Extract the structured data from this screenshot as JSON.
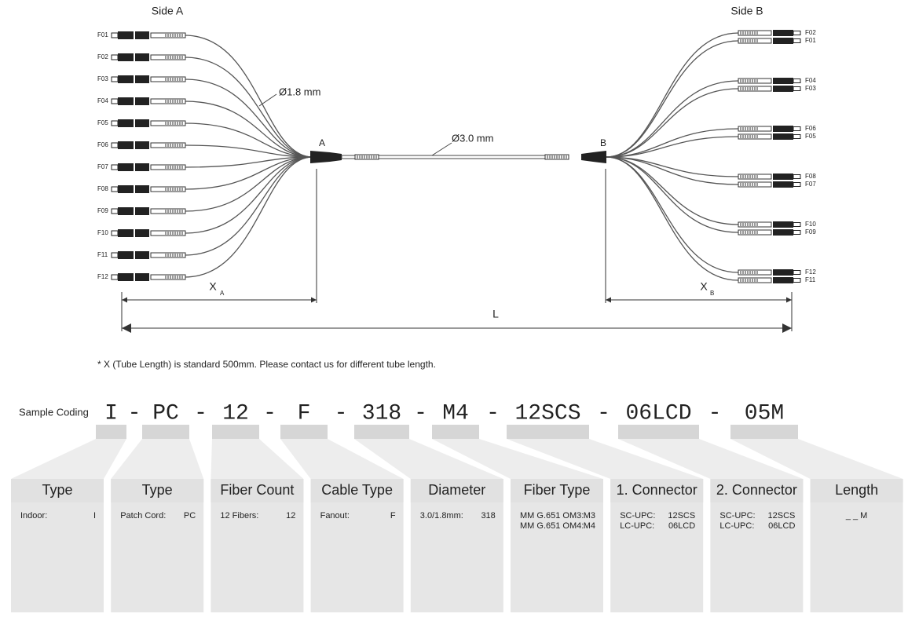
{
  "diagram": {
    "side_a": "Side A",
    "side_b": "Side B",
    "fibers_a": [
      "F01",
      "F02",
      "F03",
      "F04",
      "F05",
      "F06",
      "F07",
      "F08",
      "F09",
      "F10",
      "F11",
      "F12"
    ],
    "fibers_b": [
      "F02",
      "F01",
      "F04",
      "F03",
      "F06",
      "F05",
      "F08",
      "F07",
      "F10",
      "F09",
      "F12",
      "F11"
    ],
    "fanout_diameter": "Ø1.8 mm",
    "cable_diameter": "Ø3.0 mm",
    "end_a": "A",
    "end_b": "B",
    "x_a": "X",
    "x_a_sub": "A",
    "x_b": "X",
    "x_b_sub": "B",
    "length": "L"
  },
  "note": "* X (Tube Length) is standard 500mm. Please contact us for different tube length.",
  "coding": {
    "label": "Sample Coding",
    "separator": "-",
    "codes": [
      "I",
      "PC",
      "12",
      "F",
      "318",
      "M4",
      "12SCS",
      "06LCD",
      "05M"
    ]
  },
  "columns": [
    {
      "title": "Type",
      "rows": [
        [
          "Indoor:",
          "I"
        ]
      ]
    },
    {
      "title": "Type",
      "rows": [
        [
          "Patch Cord:",
          "PC"
        ]
      ]
    },
    {
      "title": "Fiber Count",
      "rows": [
        [
          "12 Fibers:",
          "12"
        ]
      ]
    },
    {
      "title": "Cable Type",
      "rows": [
        [
          "Fanout:",
          "F"
        ]
      ]
    },
    {
      "title": "Diameter",
      "rows": [
        [
          "3.0/1.8mm:",
          "318"
        ]
      ]
    },
    {
      "title": "Fiber Type",
      "rows": [
        [
          "MM G.651 OM3:",
          "M3"
        ],
        [
          "MM G.651 OM4:",
          "M4"
        ]
      ]
    },
    {
      "title": "1. Connector",
      "rows": [
        [
          "SC-UPC:",
          "12SCS"
        ],
        [
          "LC-UPC:",
          "06LCD"
        ]
      ]
    },
    {
      "title": "2. Connector",
      "rows": [
        [
          "SC-UPC:",
          "12SCS"
        ],
        [
          "LC-UPC:",
          "06LCD"
        ]
      ]
    },
    {
      "title": "Length",
      "rows": [
        [
          "_ _ M"
        ]
      ]
    }
  ]
}
